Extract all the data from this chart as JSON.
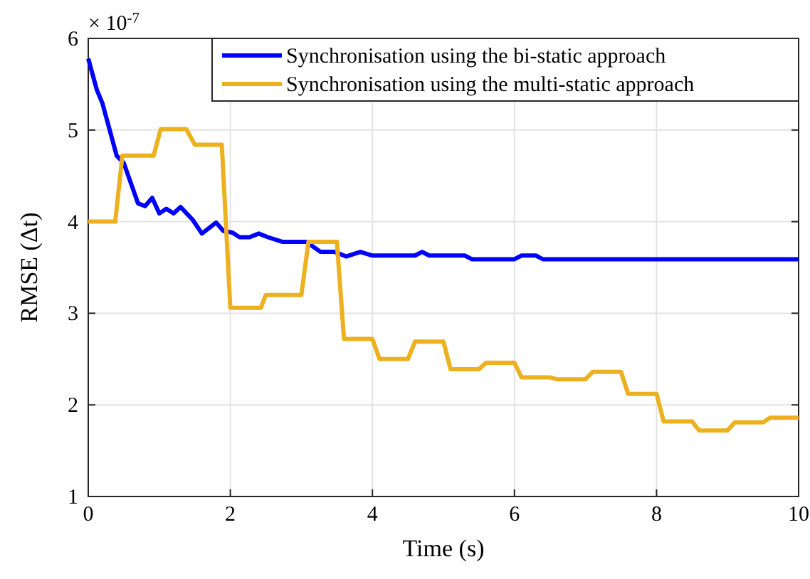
{
  "chart_data": {
    "type": "line",
    "xlabel": "Time (s)",
    "ylabel": "RMSE (Δt)",
    "annotations": [
      "× 10$^{-7}$"
    ],
    "xlim": [
      0,
      10
    ],
    "ylim": [
      1,
      6
    ],
    "xticks": [
      0,
      2,
      4,
      6,
      8,
      10
    ],
    "yticks": [
      1,
      2,
      3,
      4,
      5,
      6
    ],
    "grid": true,
    "legend": "top right",
    "line_style": "solid",
    "marker": "none",
    "series": [
      {
        "name": "Synchronisation using the bi-static approach",
        "color": "#0000ff",
        "x": [
          0,
          0.12,
          0.2,
          0.4,
          0.5,
          0.7,
          0.8,
          0.9,
          1.0,
          1.1,
          1.2,
          1.3,
          1.47,
          1.6,
          1.8,
          1.9,
          2.03,
          2.13,
          2.27,
          2.4,
          2.53,
          2.73,
          3.07,
          3.27,
          3.47,
          3.63,
          3.83,
          4.0,
          4.6,
          4.7,
          4.8,
          5.3,
          5.4,
          6.0,
          6.1,
          6.3,
          6.4,
          10
        ],
        "values": [
          5.78,
          5.44,
          5.29,
          4.72,
          4.64,
          4.2,
          4.17,
          4.26,
          4.09,
          4.14,
          4.09,
          4.16,
          4.02,
          3.87,
          3.99,
          3.9,
          3.88,
          3.83,
          3.83,
          3.87,
          3.83,
          3.78,
          3.78,
          3.67,
          3.67,
          3.62,
          3.67,
          3.63,
          3.63,
          3.67,
          3.63,
          3.63,
          3.59,
          3.59,
          3.63,
          3.63,
          3.59,
          3.59
        ]
      },
      {
        "name": "Synchronisation using the multi-static approach",
        "color": "#edb120",
        "x": [
          0,
          0.38,
          0.48,
          0.92,
          1.02,
          1.38,
          1.5,
          1.88,
          2.0,
          2.43,
          2.5,
          2.87,
          3.0,
          3.1,
          3.5,
          3.6,
          4.0,
          4.1,
          4.5,
          4.6,
          5.0,
          5.1,
          5.5,
          5.6,
          6.0,
          6.1,
          6.5,
          6.6,
          7.0,
          7.1,
          7.5,
          7.6,
          8.0,
          8.1,
          8.5,
          8.6,
          9.0,
          9.1,
          9.5,
          9.6,
          10
        ],
        "values": [
          4.0,
          4.0,
          4.72,
          4.72,
          5.01,
          5.01,
          4.84,
          4.84,
          3.06,
          3.06,
          3.2,
          3.2,
          3.2,
          3.78,
          3.78,
          2.72,
          2.72,
          2.5,
          2.5,
          2.69,
          2.69,
          2.39,
          2.39,
          2.46,
          2.46,
          2.3,
          2.3,
          2.28,
          2.28,
          2.36,
          2.36,
          2.12,
          2.12,
          1.82,
          1.82,
          1.72,
          1.72,
          1.81,
          1.81,
          1.86,
          1.86
        ]
      }
    ]
  }
}
